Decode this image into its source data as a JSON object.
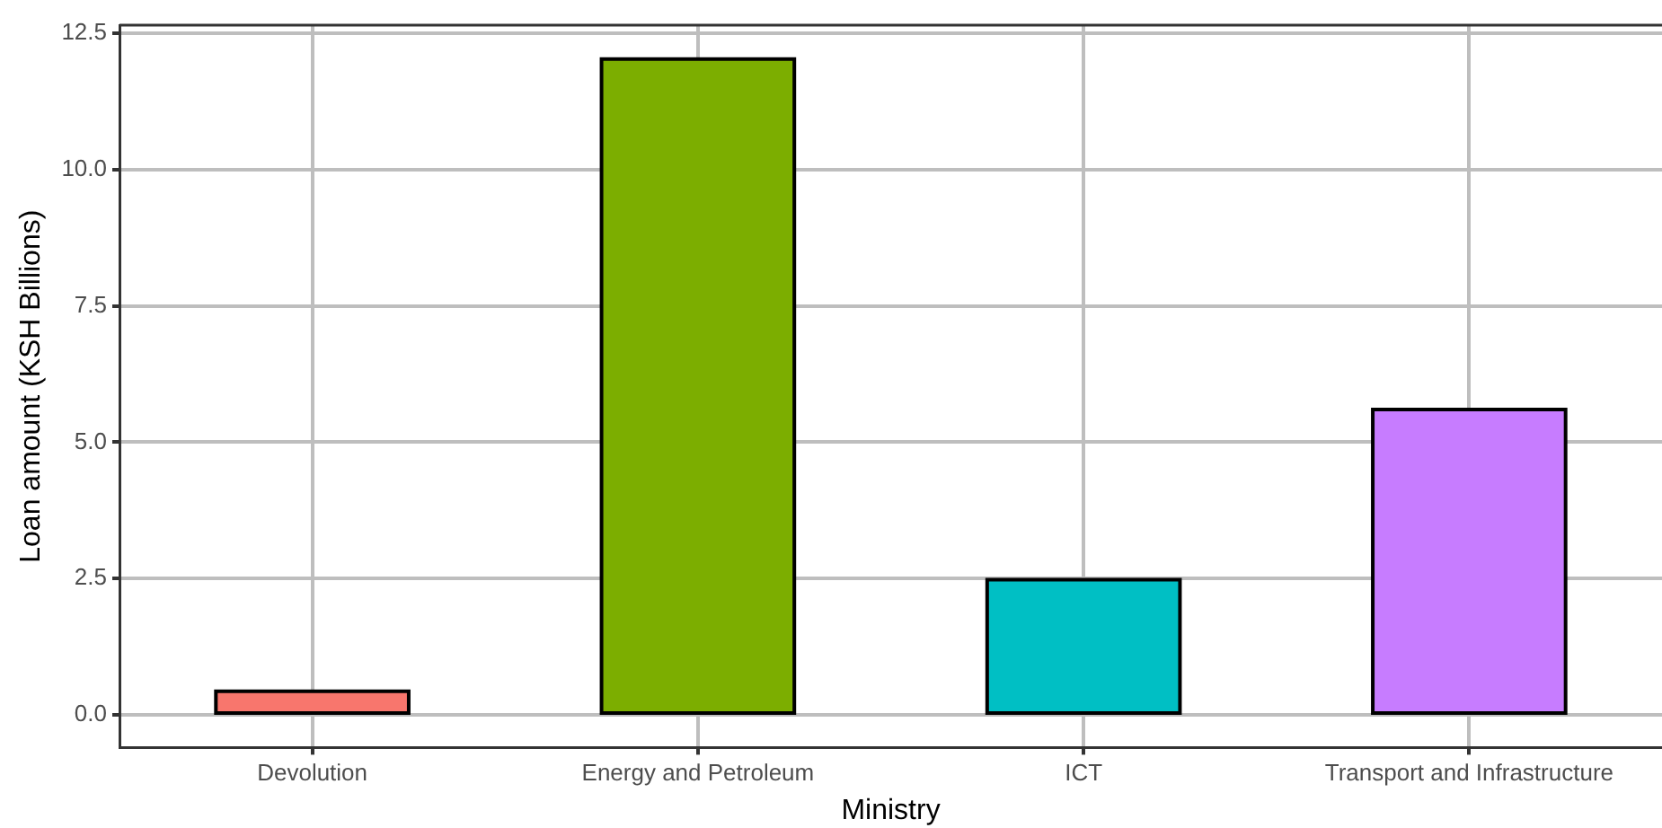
{
  "chart_data": {
    "type": "bar",
    "xlabel": "Ministry",
    "ylabel": "Loan amount (KSH Billions)",
    "categories": [
      "Devolution",
      "Energy and Petroleum",
      "ICT",
      "Transport and Infrastructure"
    ],
    "values": [
      0.43,
      12.03,
      2.48,
      5.6
    ],
    "colors": [
      "#f8766d",
      "#7cae00",
      "#00bfc4",
      "#c77cff"
    ],
    "ylim": [
      -0.6,
      12.65
    ],
    "yticks": [
      {
        "value": 0,
        "label": "0.0"
      },
      {
        "value": 2.5,
        "label": "2.5"
      },
      {
        "value": 5,
        "label": "5.0"
      },
      {
        "value": 7.5,
        "label": "7.5"
      },
      {
        "value": 10,
        "label": "10.0"
      },
      {
        "value": 12.5,
        "label": "12.5"
      }
    ],
    "grid": true,
    "legend": false
  }
}
